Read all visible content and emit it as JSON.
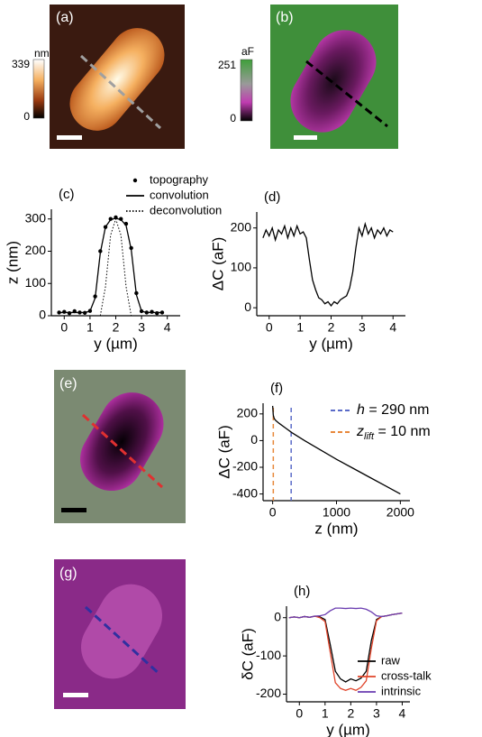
{
  "images": [
    {
      "label": "(a)",
      "colorbar": {
        "unit": "nm",
        "max": 339,
        "min": 0
      }
    },
    {
      "label": "(b)",
      "colorbar": {
        "unit": "aF",
        "max": 251,
        "min": 0
      }
    },
    {
      "label": "(e)"
    },
    {
      "label": "(g)"
    }
  ],
  "chart_data": [
    {
      "type": "line",
      "label": "(c)",
      "x_label": "y (µm)",
      "y_label": "z (nm)",
      "legend": "top",
      "xlim": [
        -0.5,
        4.5
      ],
      "xticks": [
        0,
        1,
        2,
        3,
        4
      ],
      "ylim": [
        0,
        330
      ],
      "yticks": [
        0,
        100,
        200,
        300
      ],
      "x": [
        -0.2,
        0,
        0.2,
        0.4,
        0.6,
        0.8,
        1.0,
        1.2,
        1.4,
        1.6,
        1.8,
        2.0,
        2.2,
        2.4,
        2.6,
        2.8,
        3.0,
        3.2,
        3.4,
        3.6,
        3.8
      ],
      "series": [
        {
          "name": "topography",
          "color": "#000000",
          "style": "dots",
          "values": [
            10,
            12,
            8,
            14,
            10,
            9,
            15,
            60,
            200,
            275,
            300,
            305,
            300,
            285,
            210,
            70,
            14,
            10,
            12,
            8,
            10
          ]
        },
        {
          "name": "convolution",
          "color": "#000000",
          "style": "solid",
          "values": [
            10,
            10,
            10,
            10,
            10,
            10,
            14,
            55,
            195,
            275,
            298,
            302,
            298,
            280,
            205,
            65,
            14,
            10,
            10,
            10,
            10
          ]
        },
        {
          "name": "deconvolution",
          "color": "#000000",
          "style": "dotted",
          "values": [
            null,
            null,
            null,
            null,
            null,
            null,
            null,
            null,
            0,
            90,
            250,
            300,
            250,
            90,
            0,
            null,
            null,
            null,
            null,
            null,
            null
          ]
        }
      ]
    },
    {
      "type": "line",
      "label": "(d)",
      "x_label": "y (µm)",
      "y_label": "ΔC (aF)",
      "xlim": [
        -0.4,
        4.4
      ],
      "xticks": [
        0,
        1,
        2,
        3,
        4
      ],
      "ylim": [
        -20,
        240
      ],
      "yticks": [
        0,
        100,
        200
      ],
      "x": [
        -0.2,
        -0.1,
        0,
        0.1,
        0.2,
        0.3,
        0.4,
        0.5,
        0.6,
        0.7,
        0.8,
        0.9,
        1.0,
        1.1,
        1.2,
        1.3,
        1.4,
        1.5,
        1.6,
        1.7,
        1.8,
        1.9,
        2.0,
        2.1,
        2.2,
        2.3,
        2.4,
        2.5,
        2.6,
        2.7,
        2.8,
        2.9,
        3.0,
        3.1,
        3.2,
        3.3,
        3.4,
        3.5,
        3.6,
        3.7,
        3.8,
        3.9,
        4.0
      ],
      "series": [
        {
          "color": "#000000",
          "style": "solid",
          "values": [
            175,
            195,
            180,
            200,
            170,
            195,
            185,
            205,
            175,
            200,
            180,
            205,
            185,
            190,
            175,
            120,
            70,
            45,
            25,
            20,
            10,
            15,
            5,
            15,
            10,
            20,
            25,
            30,
            50,
            90,
            150,
            200,
            180,
            210,
            185,
            200,
            175,
            195,
            185,
            200,
            180,
            195,
            190
          ]
        }
      ]
    },
    {
      "type": "line",
      "label": "(f)",
      "x_label": "z  (nm)",
      "y_label": "ΔC (aF)",
      "xlim": [
        -150,
        2150
      ],
      "xticks": [
        0,
        1000,
        2000
      ],
      "ylim": [
        -450,
        280
      ],
      "yticks": [
        -400,
        -200,
        0,
        200
      ],
      "x": [
        0,
        10,
        25,
        50,
        100,
        200,
        300,
        500,
        750,
        1000,
        1250,
        1500,
        1750,
        2000
      ],
      "series": [
        {
          "color": "#000000",
          "style": "solid",
          "values": [
            260,
            190,
            165,
            150,
            130,
            95,
            60,
            0,
            -70,
            -140,
            -205,
            -270,
            -335,
            -400
          ]
        }
      ],
      "vlines": [
        {
          "value": 290,
          "color": "#5a6bc8",
          "symbol": "h",
          "text": " = 290 nm"
        },
        {
          "value": 10,
          "color": "#e8883a",
          "symbol": "z",
          "subscript": "lift",
          "text": " = 10 nm"
        }
      ]
    },
    {
      "type": "line",
      "label": "(h)",
      "x_label": "y (µm)",
      "y_label": "δC (aF)",
      "legend": "lower right",
      "xlim": [
        -0.5,
        4.3
      ],
      "xticks": [
        0,
        1,
        2,
        3,
        4
      ],
      "ylim": [
        -220,
        30
      ],
      "yticks": [
        -200,
        -100,
        0
      ],
      "x": [
        -0.4,
        -0.2,
        0,
        0.2,
        0.4,
        0.6,
        0.8,
        1.0,
        1.2,
        1.4,
        1.6,
        1.8,
        2.0,
        2.2,
        2.4,
        2.6,
        2.8,
        3.0,
        3.2,
        3.4,
        3.6,
        3.8,
        4.0
      ],
      "series": [
        {
          "name": "raw",
          "color": "#000000",
          "style": "solid",
          "values": [
            0,
            2,
            0,
            3,
            1,
            4,
            2,
            -5,
            -70,
            -140,
            -160,
            -168,
            -160,
            -165,
            -158,
            -140,
            -60,
            -5,
            3,
            5,
            8,
            10,
            12
          ]
        },
        {
          "name": "cross-talk",
          "color": "#e0442a",
          "style": "solid",
          "values": [
            0,
            2,
            0,
            3,
            1,
            4,
            0,
            -10,
            -90,
            -170,
            -185,
            -190,
            -185,
            -190,
            -182,
            -165,
            -80,
            -8,
            3,
            5,
            8,
            10,
            12
          ]
        },
        {
          "name": "intrinsic",
          "color": "#6a3cb0",
          "style": "solid",
          "values": [
            0,
            2,
            0,
            3,
            1,
            4,
            5,
            8,
            18,
            25,
            25,
            24,
            25,
            24,
            25,
            22,
            15,
            5,
            3,
            5,
            8,
            10,
            12
          ]
        }
      ]
    }
  ]
}
